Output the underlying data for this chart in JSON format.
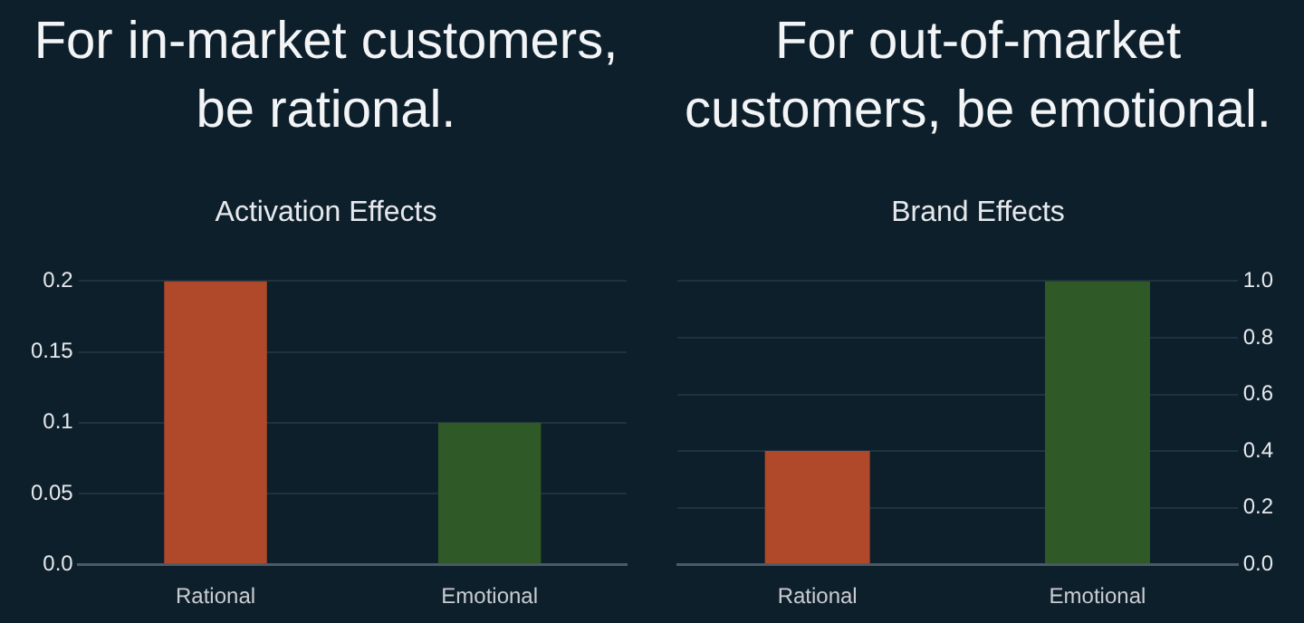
{
  "chart_data": [
    {
      "type": "bar",
      "title": "For in-market customers, be rational.",
      "subtitle": "Activation Effects",
      "categories": [
        "Rational",
        "Emotional"
      ],
      "series": [
        {
          "values": [
            0.2,
            0.1
          ],
          "colors": [
            "#b0482a",
            "#2f5a27"
          ]
        }
      ],
      "ylim": [
        0,
        0.2
      ],
      "yticks": [
        {
          "value": 0,
          "label": "0.0"
        },
        0.05,
        0.1,
        0.15,
        0.2
      ],
      "grid": "y"
    },
    {
      "type": "bar",
      "title": "For out-of-market customers, be emotional.",
      "subtitle": "Brand Effects",
      "categories": [
        "Rational",
        "Emotional"
      ],
      "series": [
        {
          "axis": "y2",
          "values": [
            0.4,
            1.0
          ],
          "colors": [
            "#b0482a",
            "#2f5a27"
          ]
        }
      ],
      "y2lim": [
        0,
        1.0
      ],
      "y2ticks": [
        {
          "value": 0,
          "label": "0.0"
        },
        0.2,
        0.4,
        0.6,
        0.8,
        {
          "value": 1.0,
          "label": "1.0"
        }
      ],
      "grid": "y"
    }
  ]
}
